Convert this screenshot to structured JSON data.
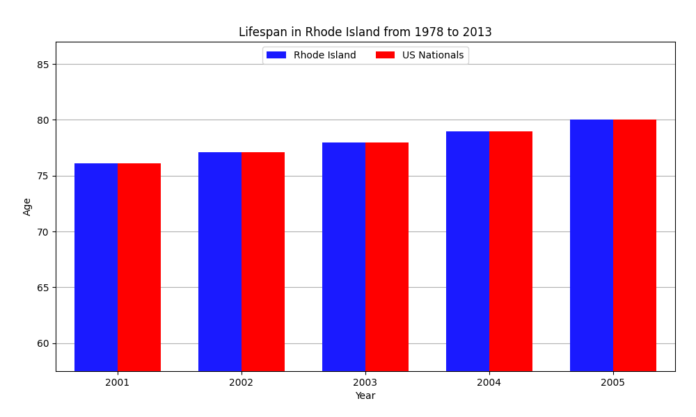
{
  "chart_data": {
    "type": "bar",
    "title": "Lifespan in Rhode Island from 1978 to 2013",
    "x_label": "Year",
    "y_label": "Age",
    "categories": [
      "2001",
      "2002",
      "2003",
      "2004",
      "2005"
    ],
    "series": [
      {
        "name": "Rhode Island",
        "color": "#1a1aff",
        "values": [
          76.1,
          77.1,
          78.0,
          79.0,
          80.0
        ]
      },
      {
        "name": "US Nationals",
        "color": "#ff0000",
        "values": [
          76.1,
          77.1,
          78.0,
          79.0,
          80.0
        ]
      }
    ],
    "ylim": [
      57.5,
      87
    ],
    "yticks": [
      60,
      65,
      70,
      75,
      80,
      85
    ],
    "grid": true,
    "legend": "upper center"
  }
}
